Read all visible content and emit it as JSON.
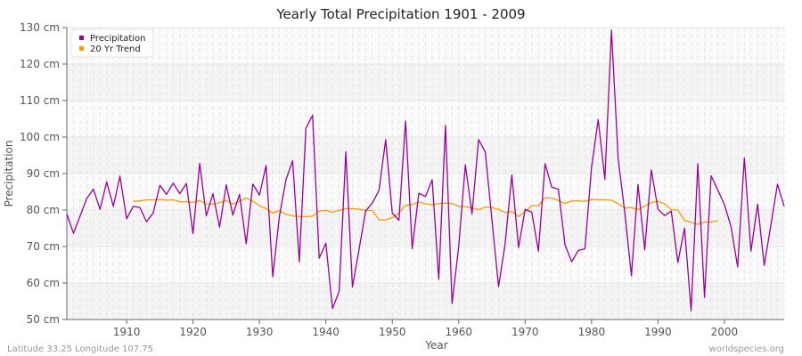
{
  "chart_data": {
    "type": "line",
    "title": "Yearly Total Precipitation 1901 - 2009",
    "xlabel": "Year",
    "ylabel": "Precipitation",
    "xlim": [
      1901,
      2009
    ],
    "ylim": [
      50,
      130
    ],
    "y_unit": "cm",
    "x_ticks": [
      1910,
      1920,
      1930,
      1940,
      1950,
      1960,
      1970,
      1980,
      1990,
      2000
    ],
    "y_ticks": [
      50,
      60,
      70,
      80,
      90,
      100,
      110,
      120,
      130
    ],
    "y_tick_labels": [
      "50 cm",
      "60 cm",
      "70 cm",
      "80 cm",
      "90 cm",
      "100 cm",
      "110 cm",
      "120 cm",
      "130 cm"
    ],
    "grid": true,
    "legend_position": "top-left",
    "series": [
      {
        "name": "Precipitation",
        "color": "#990099",
        "x_start": 1901,
        "values": [
          78.9,
          73.6,
          78.4,
          83.2,
          85.7,
          80.2,
          87.7,
          81.0,
          89.3,
          77.6,
          81.0,
          80.7,
          76.8,
          79.2,
          86.8,
          84.3,
          87.4,
          84.5,
          87.3,
          73.5,
          92.8,
          78.4,
          84.5,
          75.3,
          86.9,
          78.6,
          84.3,
          70.7,
          87.1,
          84.1,
          92.2,
          61.7,
          78.2,
          88.4,
          93.5,
          65.8,
          102.4,
          106.0,
          66.8,
          70.9,
          53.0,
          57.7,
          95.9,
          58.9,
          69.3,
          79.8,
          81.9,
          85.4,
          99.3,
          79.2,
          77.2,
          104.4,
          69.4,
          84.6,
          83.7,
          88.3,
          61.0,
          103.2,
          54.4,
          70.1,
          92.4,
          78.9,
          99.3,
          95.9,
          77.4,
          59.0,
          70.9,
          89.6,
          69.7,
          80.2,
          79.4,
          68.7,
          92.7,
          86.3,
          85.7,
          70.5,
          65.8,
          68.9,
          69.4,
          91.6,
          104.8,
          88.4,
          129.3,
          94.1,
          79.4,
          62.0,
          87.0,
          69.1,
          91.0,
          80.2,
          78.5,
          79.7,
          65.6,
          75.0,
          52.4,
          92.7,
          56.1,
          89.4,
          85.5,
          81.5,
          75.4,
          64.4,
          94.3,
          68.7,
          81.6,
          64.8,
          75.9,
          87.1,
          81.0
        ]
      },
      {
        "name": "20 Yr Trend",
        "color": "#ff9900",
        "x_start": 1911,
        "values": [
          82.4,
          82.5,
          82.8,
          82.8,
          82.9,
          82.7,
          82.8,
          82.3,
          82.3,
          82.1,
          82.6,
          81.6,
          81.6,
          82.0,
          82.6,
          81.6,
          82.4,
          83.3,
          82.4,
          81.2,
          80.4,
          79.2,
          79.8,
          78.8,
          78.4,
          78.2,
          78.2,
          78.3,
          79.7,
          79.9,
          79.4,
          79.9,
          80.4,
          80.4,
          80.2,
          79.9,
          79.9,
          77.3,
          77.3,
          77.9,
          79.2,
          81.3,
          81.5,
          82.2,
          81.7,
          81.4,
          81.8,
          81.9,
          81.8,
          81.0,
          80.9,
          80.6,
          80.1,
          80.8,
          80.7,
          80.2,
          79.3,
          79.6,
          78.2,
          79.6,
          81.2,
          81.2,
          83.4,
          83.3,
          82.6,
          81.8,
          82.5,
          82.5,
          82.4,
          82.9,
          82.8,
          82.8,
          82.7,
          81.7,
          80.5,
          80.7,
          80.1,
          81.1,
          82.0,
          82.4,
          81.7,
          80.1,
          80.0,
          77.2,
          76.6,
          76.1,
          76.7,
          76.7,
          77.1
        ]
      }
    ]
  },
  "footer": {
    "left": "Latitude 33.25 Longitude 107.75",
    "right": "worldspecies.org"
  }
}
